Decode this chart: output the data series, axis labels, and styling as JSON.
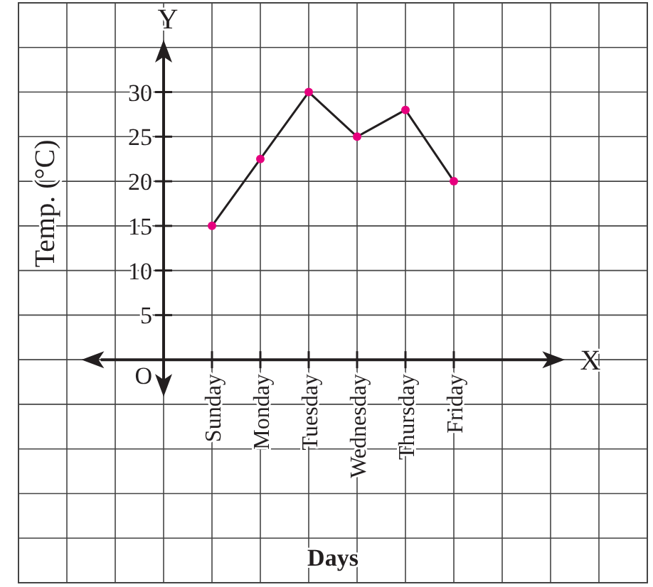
{
  "chart_data": {
    "type": "line",
    "xlabel": "Days",
    "ylabel": "Temp. (°C)",
    "annotations": [
      "Y",
      "X"
    ],
    "categories": [
      "Sunday",
      "Monday",
      "Tuesday",
      "Wednesday",
      "Thursday",
      "Friday"
    ],
    "series": [
      {
        "color": "#231f20",
        "colors": [
          "#e6007e",
          "#e6007e",
          "#e6007e",
          "#e6007e",
          "#e6007e",
          "#e6007e"
        ],
        "values": [
          15,
          22.5,
          30,
          25,
          28,
          20
        ]
      }
    ],
    "ylim": [
      -25,
      40
    ],
    "yticks": [
      {
        "value": -25,
        "label": null
      },
      {
        "value": -20,
        "label": null
      },
      {
        "value": -15,
        "label": null
      },
      {
        "value": -10,
        "label": null
      },
      {
        "value": -5,
        "label": null
      },
      {
        "value": 0,
        "label": "O"
      },
      5,
      10,
      15,
      20,
      25,
      30,
      {
        "value": 35,
        "label": null
      },
      {
        "value": 40,
        "label": null
      }
    ],
    "grid": true,
    "marker": "circle",
    "line_style": "solid"
  }
}
